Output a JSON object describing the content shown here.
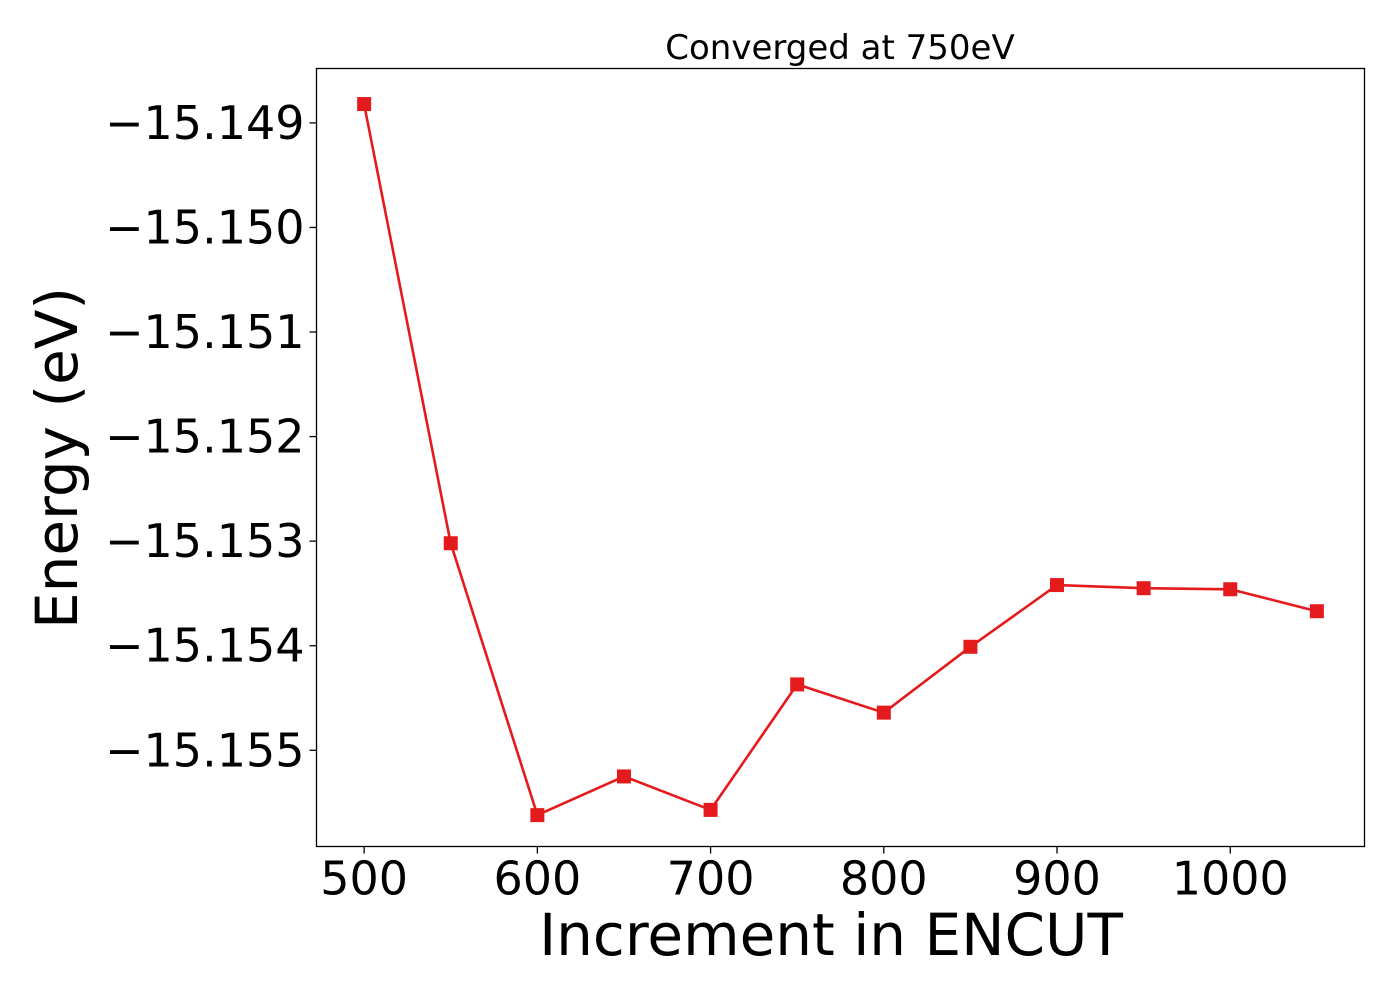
{
  "chart_data": {
    "type": "line",
    "title": "Converged at 750eV",
    "xlabel": "Increment in ENCUT",
    "ylabel": "Energy (eV)",
    "x": [
      500,
      550,
      600,
      650,
      700,
      750,
      800,
      850,
      900,
      950,
      1000,
      1050
    ],
    "series": [
      {
        "values": [
          -15.14882,
          -15.15302,
          -15.15562,
          -15.15525,
          -15.15557,
          -15.15437,
          -15.15464,
          -15.15401,
          -15.15342,
          -15.15345,
          -15.15346,
          -15.15367
        ],
        "color": "#e41a1c",
        "marker": "square"
      }
    ],
    "xlim": [
      472.5,
      1077.5
    ],
    "ylim": [
      -15.15592,
      -15.14848
    ],
    "xticks": [
      500,
      600,
      700,
      800,
      900,
      1000
    ],
    "xtick_labels": [
      "500",
      "600",
      "700",
      "800",
      "900",
      "1000"
    ],
    "yticks": [
      -15.149,
      -15.15,
      -15.151,
      -15.152,
      -15.153,
      -15.154,
      -15.155
    ],
    "ytick_labels": [
      "−15.149",
      "−15.150",
      "−15.151",
      "−15.152",
      "−15.153",
      "−15.154",
      "−15.155"
    ],
    "grid": false,
    "legend": "none"
  }
}
